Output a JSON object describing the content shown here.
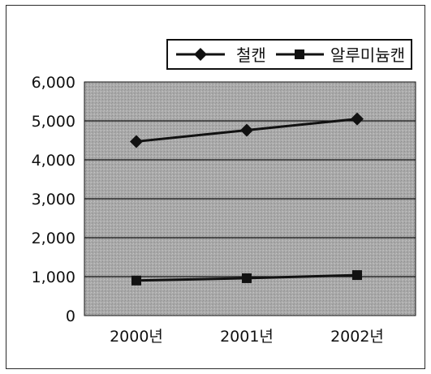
{
  "chart_data": {
    "type": "line",
    "categories": [
      "2000년",
      "2001년",
      "2002년"
    ],
    "series": [
      {
        "name": "철캔",
        "values": [
          4470,
          4760,
          5050
        ],
        "marker": "diamond"
      },
      {
        "name": "알루미늄캔",
        "values": [
          900,
          960,
          1040
        ],
        "marker": "square"
      }
    ],
    "ylim": [
      0,
      6000
    ],
    "yticks": [
      0,
      1000,
      2000,
      3000,
      4000,
      5000,
      6000
    ],
    "ytick_labels": [
      "0",
      "1,000",
      "2,000",
      "3,000",
      "4,000",
      "5,000",
      "6,000"
    ],
    "grid": true,
    "legend_position": "top-right",
    "colors": {
      "plot_background": "#a9a9a9",
      "series": "#111111",
      "gridline": "#111111",
      "frame": "#2b2b2b"
    }
  }
}
